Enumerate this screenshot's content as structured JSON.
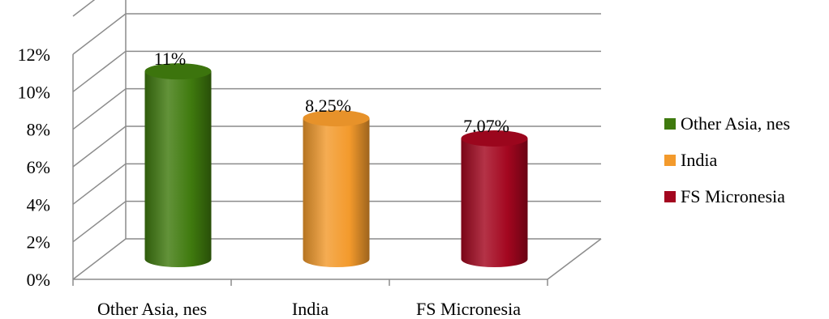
{
  "chart_data": {
    "type": "bar",
    "variant": "3d-cylinder",
    "title": "",
    "xlabel": "",
    "ylabel": "",
    "categories": [
      "Other Asia, nes",
      "India",
      "FS Micronesia"
    ],
    "values": [
      11,
      8.25,
      7.07
    ],
    "data_labels": [
      "11%",
      "8.25%",
      "7.07%"
    ],
    "colors": [
      "#3f7a0e",
      "#f39a2c",
      "#a3061f"
    ],
    "ylim": [
      0,
      12
    ],
    "yticks": [
      0,
      2,
      4,
      6,
      8,
      10,
      12
    ],
    "ytick_labels": [
      "0%",
      "2%",
      "4%",
      "6%",
      "8%",
      "10%",
      "12%"
    ],
    "grid": true,
    "legend": {
      "position": "right",
      "entries": [
        "Other Asia, nes",
        "India",
        "FS Micronesia"
      ]
    }
  }
}
